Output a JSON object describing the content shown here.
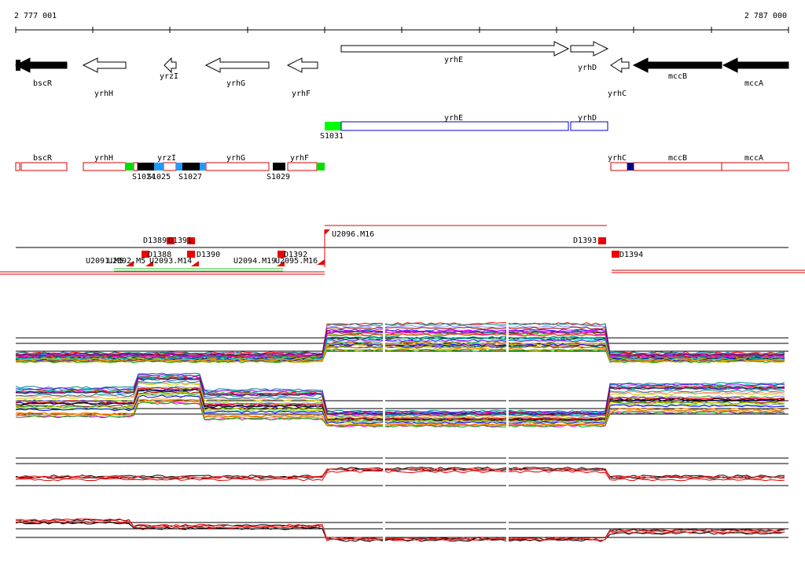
{
  "ruler": {
    "start": "2 777 001",
    "end": "2 787 000"
  },
  "genes": [
    "bscR",
    "yrhH",
    "yrzI",
    "yrhG",
    "yrhF",
    "yrhE",
    "yrhD",
    "yrhC",
    "mccB",
    "mccA"
  ],
  "transcripts": [
    "yrhE",
    "yrhD",
    "S1031"
  ],
  "segments": [
    "bscR",
    "yrhH",
    "yrzI",
    "yrhG",
    "yrhF",
    "yrhC",
    "mccB",
    "mccA",
    "S1024",
    "S1025",
    "S1027",
    "S1029"
  ],
  "markers": [
    "D1389",
    "D1391",
    "D1388",
    "D1390",
    "U2091.M5",
    "U2092.M5",
    "U2093.M14",
    "U2094.M19",
    "U2095.M16",
    "D1392",
    "U2096.M16",
    "D1393",
    "D1394"
  ]
}
